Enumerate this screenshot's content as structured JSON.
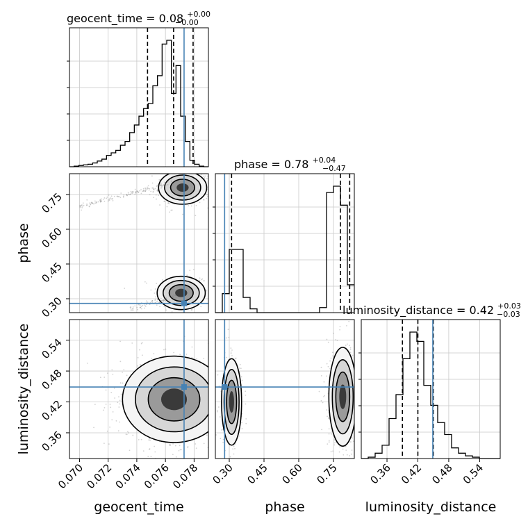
{
  "figure": {
    "background": "#ffffff",
    "truth_color": "#4682b4",
    "hist_color": "#000000",
    "scatter_color": "#7f7f7f"
  },
  "chart_data": {
    "type": "corner",
    "parameters": [
      "geocent_time",
      "phase",
      "luminosity_distance"
    ],
    "truths": {
      "geocent_time": 0.0773,
      "phase": 0.28,
      "luminosity_distance": 0.449
    },
    "panel_titles": {
      "geocent_time": {
        "name": "geocent_time",
        "value": "0.08",
        "plus": "+0.00",
        "minus": "−0.00"
      },
      "phase": {
        "name": "phase",
        "value": "0.78",
        "plus": "+0.04",
        "minus": "−0.47"
      },
      "luminosity_distance": {
        "name": "luminosity_distance",
        "value": "0.42",
        "plus": "+0.03",
        "minus": "−0.03"
      }
    },
    "axes": {
      "geocent_time": {
        "range": [
          0.0693,
          0.079
        ],
        "ticks": [
          0.07,
          0.072,
          0.074,
          0.076,
          0.078
        ],
        "tick_labels": [
          "0.070",
          "0.072",
          "0.074",
          "0.076",
          "0.078"
        ],
        "label": "geocent_time"
      },
      "phase": {
        "range": [
          0.24,
          0.84
        ],
        "ticks": [
          0.3,
          0.45,
          0.6,
          0.75
        ],
        "tick_labels": [
          "0.30",
          "0.45",
          "0.60",
          "0.75"
        ],
        "label": "phase"
      },
      "luminosity_distance": {
        "range": [
          0.31,
          0.58
        ],
        "ticks": [
          0.36,
          0.42,
          0.48,
          0.54
        ],
        "tick_labels": [
          "0.36",
          "0.42",
          "0.48",
          "0.54"
        ],
        "label": "luminosity_distance"
      }
    },
    "histograms": {
      "geocent_time": {
        "edges_range": [
          0.0693,
          0.079
        ],
        "bins": 30,
        "counts": [
          0,
          0.005,
          0.01,
          0.015,
          0.02,
          0.03,
          0.045,
          0.06,
          0.09,
          0.11,
          0.13,
          0.17,
          0.2,
          0.27,
          0.33,
          0.4,
          0.46,
          0.5,
          0.64,
          0.72,
          0.97,
          1.0,
          0.58,
          0.8,
          0.4,
          0.2,
          0.05,
          0.02,
          0.005,
          0
        ],
        "quantiles": [
          0.07475,
          0.07657,
          0.07793
        ]
      },
      "phase": {
        "edges_range": [
          0.24,
          0.84
        ],
        "bins": 20,
        "counts": [
          0.0,
          0.15,
          0.5,
          0.5,
          0.12,
          0.03,
          0.0,
          0.0,
          0.0,
          0.0,
          0.0,
          0.0,
          0.0,
          0.0,
          0.0,
          0.04,
          0.95,
          1.0,
          0.85,
          0.22
        ],
        "quantiles": [
          0.31,
          0.78,
          0.82
        ]
      },
      "luminosity_distance": {
        "edges_range": [
          0.31,
          0.58
        ],
        "bins": 20,
        "counts": [
          0.0,
          0.01,
          0.04,
          0.1,
          0.3,
          0.48,
          0.75,
          0.95,
          0.88,
          0.55,
          0.4,
          0.27,
          0.18,
          0.08,
          0.04,
          0.02,
          0.01,
          0.0,
          0.0,
          0.0
        ],
        "quantiles": [
          0.39,
          0.42,
          0.45
        ]
      }
    },
    "density_modes": {
      "phase_vs_geocent_time": [
        {
          "x": 0.0771,
          "y": 0.325,
          "sx": 0.0007,
          "sy": 0.03,
          "w": 0.35
        },
        {
          "x": 0.0772,
          "y": 0.78,
          "sx": 0.0007,
          "sy": 0.03,
          "w": 0.45
        },
        {
          "trail": true,
          "x0": 0.07,
          "y0": 0.7,
          "x1": 0.0765,
          "y1": 0.8,
          "w": 0.2
        },
        {
          "trail": true,
          "x0": 0.0735,
          "y0": 0.255,
          "x1": 0.0768,
          "y1": 0.31,
          "w": 0.1
        }
      ],
      "luminosity_distance_vs_geocent_time": [
        {
          "x": 0.0766,
          "y": 0.425,
          "sx": 0.0015,
          "sy": 0.035,
          "w": 1.0
        }
      ],
      "luminosity_distance_vs_phase": [
        {
          "x": 0.31,
          "y": 0.42,
          "sx": 0.018,
          "sy": 0.035,
          "w": 0.35
        },
        {
          "x": 0.79,
          "y": 0.43,
          "sx": 0.025,
          "sy": 0.04,
          "w": 0.65
        }
      ]
    }
  }
}
